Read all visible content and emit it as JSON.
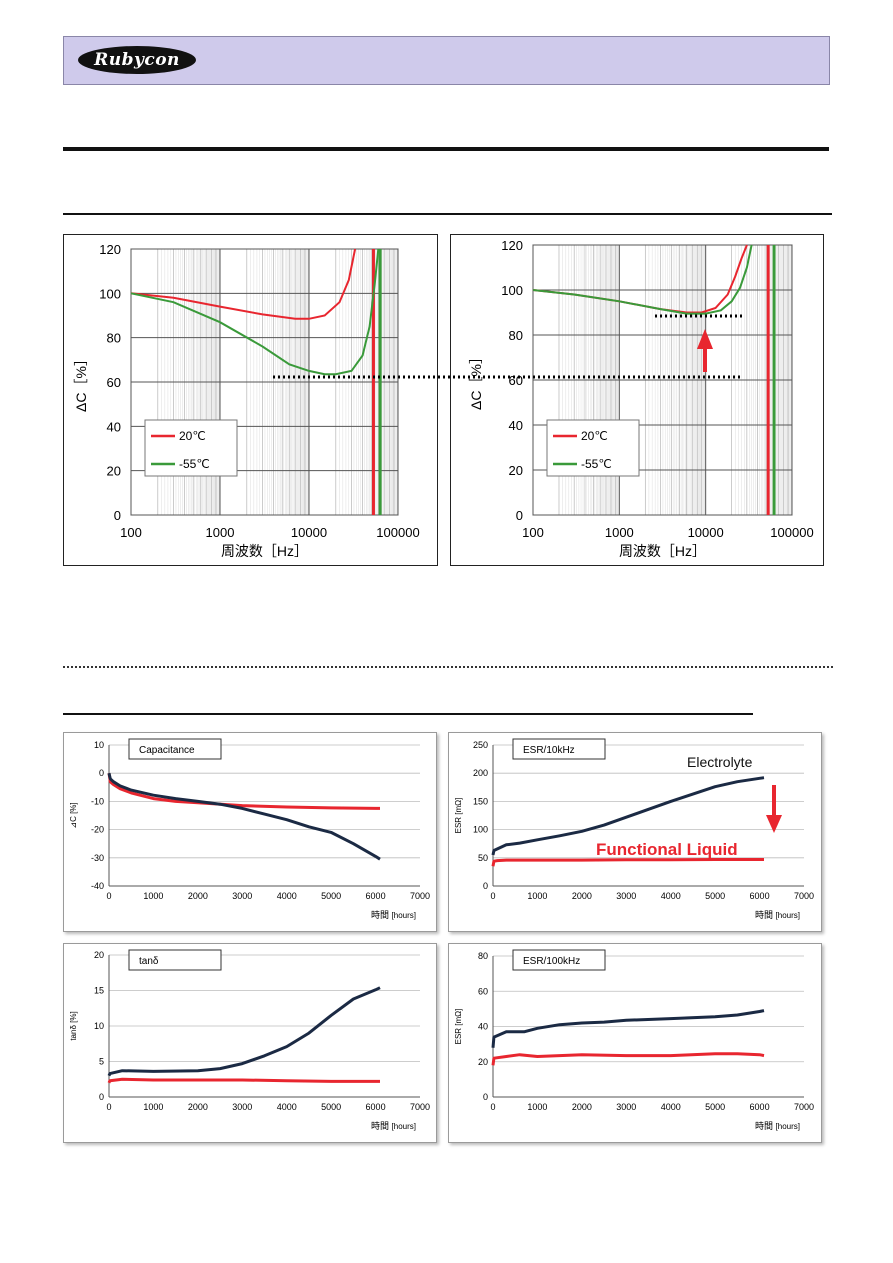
{
  "brand": {
    "logo_text": "Rubycon"
  },
  "chart_data": [
    {
      "id": "freq_left",
      "type": "line",
      "xscale": "log",
      "xlim": [
        100,
        100000
      ],
      "ylim": [
        0,
        120
      ],
      "xticks": [
        "100",
        "1000",
        "10000",
        "100000"
      ],
      "yticks": [
        "0",
        "20",
        "40",
        "60",
        "80",
        "100",
        "120"
      ],
      "xlabel": "周波数［Hz］",
      "ylabel": "ΔC［%］",
      "legend_position": "bottom-left",
      "series": [
        {
          "name": "20℃",
          "color": "#e8262f",
          "x": [
            100,
            300,
            1000,
            3000,
            7000,
            10000,
            15000,
            22000,
            28000,
            33000
          ],
          "y": [
            100,
            98,
            94,
            90.5,
            88.5,
            88.5,
            90,
            96,
            106,
            120
          ]
        },
        {
          "name": "-55℃",
          "color": "#3a9a3a",
          "x": [
            100,
            300,
            1000,
            3000,
            6000,
            10000,
            15000,
            20000,
            30000,
            40000,
            48000,
            55000,
            60000
          ],
          "y": [
            100,
            96,
            87,
            76,
            68,
            65,
            63.5,
            63.5,
            65,
            72,
            85,
            105,
            120
          ]
        }
      ],
      "vlines": [
        {
          "x": 53000,
          "color": "#e8262f"
        },
        {
          "x": 63000,
          "color": "#3a9a3a"
        }
      ]
    },
    {
      "id": "freq_right",
      "type": "line",
      "xscale": "log",
      "xlim": [
        100,
        100000
      ],
      "ylim": [
        0,
        120
      ],
      "xticks": [
        "100",
        "1000",
        "10000",
        "100000"
      ],
      "yticks": [
        "0",
        "20",
        "40",
        "60",
        "80",
        "100",
        "120"
      ],
      "xlabel": "周波数［Hz］",
      "ylabel": "ΔC［%］",
      "legend_position": "bottom-left",
      "series": [
        {
          "name": "20℃",
          "color": "#e8262f",
          "x": [
            100,
            300,
            1000,
            3000,
            6000,
            9000,
            13000,
            18000,
            22000,
            26000,
            30000
          ],
          "y": [
            100,
            98,
            95,
            91.5,
            90,
            90,
            92,
            98,
            106,
            114,
            120
          ]
        },
        {
          "name": "-55℃",
          "color": "#3a9a3a",
          "x": [
            100,
            300,
            1000,
            3000,
            6000,
            10000,
            15000,
            20000,
            25000,
            30000,
            34000
          ],
          "y": [
            100,
            98,
            95,
            91.5,
            89.5,
            89.5,
            91,
            95,
            101,
            110,
            120
          ]
        }
      ],
      "vlines": [
        {
          "x": 53000,
          "color": "#e8262f"
        },
        {
          "x": 62000,
          "color": "#3a9a3a"
        }
      ]
    },
    {
      "id": "life_cap",
      "type": "line",
      "title": "Capacitance",
      "xlim": [
        0,
        7000
      ],
      "ylim": [
        -40,
        10
      ],
      "xticks": [
        "0",
        "1000",
        "2000",
        "3000",
        "4000",
        "5000",
        "6000",
        "7000"
      ],
      "yticks": [
        "-40",
        "-30",
        "-20",
        "-10",
        "0",
        "10"
      ],
      "xlabel_main": "時間",
      "xlabel_unit": "[hours]",
      "ylabel": "⊿C [%]",
      "series": [
        {
          "name": "Functional Liquid",
          "color": "#e8262f",
          "x": [
            0,
            30,
            100,
            250,
            500,
            1000,
            1500,
            2000,
            3000,
            4000,
            5000,
            6000,
            6100
          ],
          "y": [
            0,
            -3,
            -4,
            -5.5,
            -7,
            -9,
            -10,
            -10.5,
            -11.5,
            -12,
            -12.3,
            -12.5,
            -12.5
          ]
        },
        {
          "name": "Electrolyte",
          "color": "#1b2a44",
          "x": [
            0,
            30,
            100,
            250,
            500,
            1000,
            1500,
            2000,
            2500,
            3000,
            3500,
            4000,
            4500,
            5000,
            5500,
            6000,
            6100
          ],
          "y": [
            0,
            -2,
            -3,
            -4.5,
            -6,
            -7.8,
            -9,
            -10,
            -11,
            -12.5,
            -14.5,
            -16.5,
            -19,
            -21,
            -25,
            -29.5,
            -30.5
          ]
        }
      ]
    },
    {
      "id": "life_esr10k",
      "type": "line",
      "title": "ESR/10kHz",
      "xlim": [
        0,
        7000
      ],
      "ylim": [
        0,
        250
      ],
      "xticks": [
        "0",
        "1000",
        "2000",
        "3000",
        "4000",
        "5000",
        "6000",
        "7000"
      ],
      "yticks": [
        "0",
        "50",
        "100",
        "150",
        "200",
        "250"
      ],
      "xlabel_main": "時間",
      "xlabel_unit": "[hours]",
      "ylabel": "ESR [mΩ]",
      "annotations": [
        "Electrolyte",
        "Functional Liquid"
      ],
      "series": [
        {
          "name": "Functional Liquid",
          "color": "#e8262f",
          "x": [
            0,
            20,
            100,
            300,
            1000,
            2000,
            3000,
            4000,
            5000,
            6000,
            6100
          ],
          "y": [
            35,
            44,
            45,
            46,
            46,
            46,
            46.5,
            46.5,
            47,
            47,
            47
          ]
        },
        {
          "name": "Electrolyte",
          "color": "#1b2a44",
          "x": [
            0,
            20,
            300,
            600,
            1000,
            1500,
            2000,
            2500,
            3000,
            3500,
            4000,
            4500,
            5000,
            5500,
            6000,
            6100
          ],
          "y": [
            55,
            63,
            73,
            76,
            82,
            89,
            97,
            108,
            122,
            136,
            150,
            163,
            176,
            185,
            191,
            192
          ]
        }
      ]
    },
    {
      "id": "life_tand",
      "type": "line",
      "title": "tanδ",
      "xlim": [
        0,
        7000
      ],
      "ylim": [
        0,
        20
      ],
      "xticks": [
        "0",
        "1000",
        "2000",
        "3000",
        "4000",
        "5000",
        "6000",
        "7000"
      ],
      "yticks": [
        "0",
        "5",
        "10",
        "15",
        "20"
      ],
      "xlabel_main": "時間",
      "xlabel_unit": "[hours]",
      "ylabel": "tanδ [%]",
      "series": [
        {
          "name": "Functional Liquid",
          "color": "#e8262f",
          "x": [
            0,
            20,
            300,
            1000,
            2000,
            3000,
            4000,
            5000,
            6000,
            6100
          ],
          "y": [
            2,
            2.3,
            2.5,
            2.4,
            2.4,
            2.4,
            2.3,
            2.2,
            2.2,
            2.2
          ]
        },
        {
          "name": "Electrolyte",
          "color": "#1b2a44",
          "x": [
            0,
            20,
            300,
            1000,
            2000,
            2500,
            3000,
            3500,
            4000,
            4500,
            5000,
            5500,
            6000,
            6100
          ],
          "y": [
            3,
            3.3,
            3.7,
            3.6,
            3.7,
            4,
            4.7,
            5.8,
            7.1,
            9,
            11.5,
            13.8,
            15.1,
            15.4
          ]
        }
      ]
    },
    {
      "id": "life_esr100k",
      "type": "line",
      "title": "ESR/100kHz",
      "xlim": [
        0,
        7000
      ],
      "ylim": [
        0,
        80
      ],
      "xticks": [
        "0",
        "1000",
        "2000",
        "3000",
        "4000",
        "5000",
        "6000",
        "7000"
      ],
      "yticks": [
        "0",
        "20",
        "40",
        "60",
        "80"
      ],
      "xlabel_main": "時間",
      "xlabel_unit": "[hours]",
      "ylabel": "ESR [mΩ]",
      "series": [
        {
          "name": "Functional Liquid",
          "color": "#e8262f",
          "x": [
            0,
            20,
            300,
            600,
            1000,
            1500,
            2000,
            3000,
            4000,
            5000,
            5500,
            6000,
            6100
          ],
          "y": [
            18,
            22,
            23,
            24,
            23,
            23.5,
            24,
            23.5,
            23.5,
            24.5,
            24.5,
            24,
            23.5
          ]
        },
        {
          "name": "Electrolyte",
          "color": "#1b2a44",
          "x": [
            0,
            20,
            300,
            700,
            1000,
            1500,
            2000,
            2500,
            3000,
            4000,
            5000,
            5500,
            6000,
            6100
          ],
          "y": [
            28,
            34,
            37,
            37,
            39,
            41,
            42,
            42.5,
            43.5,
            44.5,
            45.5,
            46.5,
            48.5,
            49
          ]
        }
      ]
    }
  ]
}
